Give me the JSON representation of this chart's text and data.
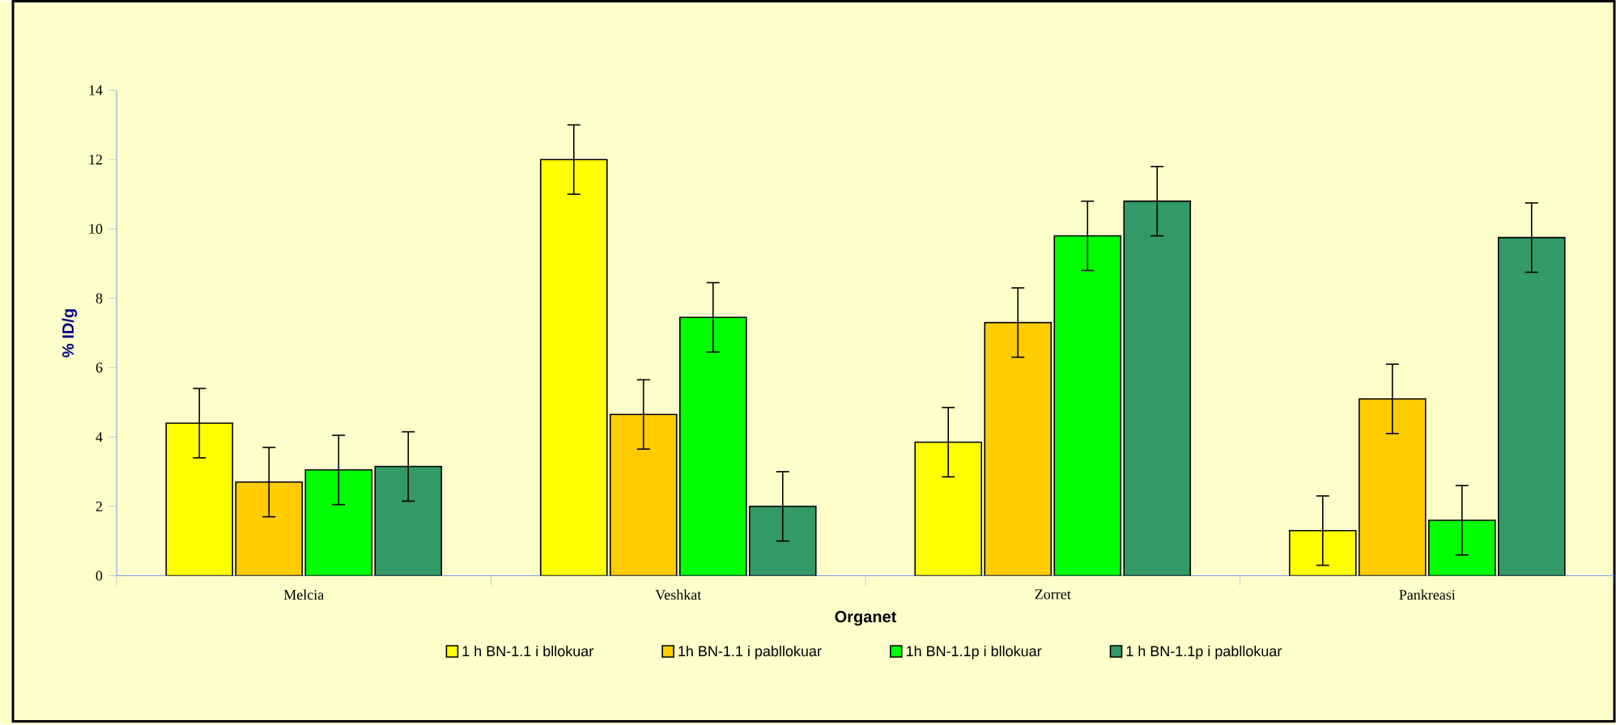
{
  "chart_data": {
    "type": "bar",
    "xlabel": "Organet",
    "ylabel": "% ID/g",
    "categories": [
      "Melcia",
      "Veshkat",
      "Zorret",
      "Pankreasi"
    ],
    "series": [
      {
        "name": "1 h BN-1.1 i bllokuar",
        "color": "#ffff00",
        "values": [
          4.4,
          12.0,
          3.85,
          1.3
        ],
        "errors": [
          1,
          1,
          1,
          1
        ]
      },
      {
        "name": "1h BN-1.1 i pabllokuar",
        "color": "#ffcc00",
        "values": [
          2.7,
          4.65,
          7.3,
          5.1
        ],
        "errors": [
          1,
          1,
          1,
          1
        ]
      },
      {
        "name": "1h BN-1.1p i bllokuar",
        "color": "#00ff00",
        "values": [
          3.05,
          7.45,
          9.8,
          1.6
        ],
        "errors": [
          1,
          1,
          1,
          1
        ]
      },
      {
        "name": "1 h BN-1.1p i pabllokuar",
        "color": "#339966",
        "values": [
          3.15,
          2.0,
          10.8,
          9.75
        ],
        "errors": [
          1,
          1,
          1,
          1
        ]
      }
    ],
    "ylim": [
      0,
      14
    ],
    "yticks": [
      0,
      2,
      4,
      6,
      8,
      10,
      12,
      14
    ],
    "grid": false,
    "legend": "bottom"
  }
}
